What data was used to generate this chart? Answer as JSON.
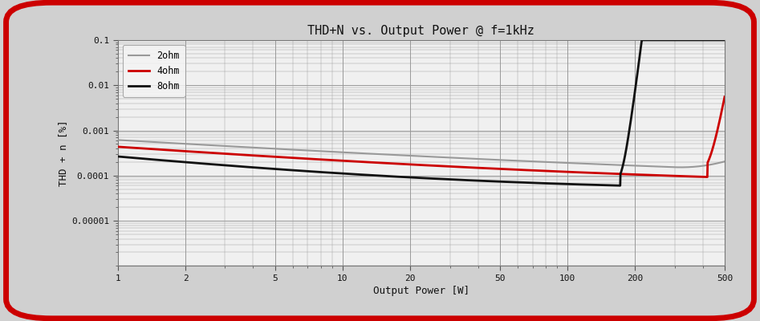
{
  "title": "THD+N vs. Output Power @ f=1kHz",
  "xlabel": "Output Power [W]",
  "ylabel": "THD + n [%]",
  "xlim": [
    1,
    500
  ],
  "ylim": [
    1e-06,
    0.1
  ],
  "background_color": "#d0d0d0",
  "plot_background": "#f0f0f0",
  "grid_color": "#999999",
  "legend": [
    "2ohm",
    "4ohm",
    "8ohm"
  ],
  "legend_colors": [
    "#999999",
    "#cc0000",
    "#111111"
  ],
  "legend_linewidths": [
    1.5,
    2.0,
    2.0
  ],
  "ytick_labels": [
    "0.1",
    "0.01",
    "0.001",
    "0.0001",
    "0.00001"
  ],
  "ytick_values": [
    0.1,
    0.01,
    0.001,
    0.0001,
    1e-05
  ],
  "xtick_values": [
    1,
    2,
    5,
    10,
    20,
    50,
    100,
    200,
    500
  ]
}
